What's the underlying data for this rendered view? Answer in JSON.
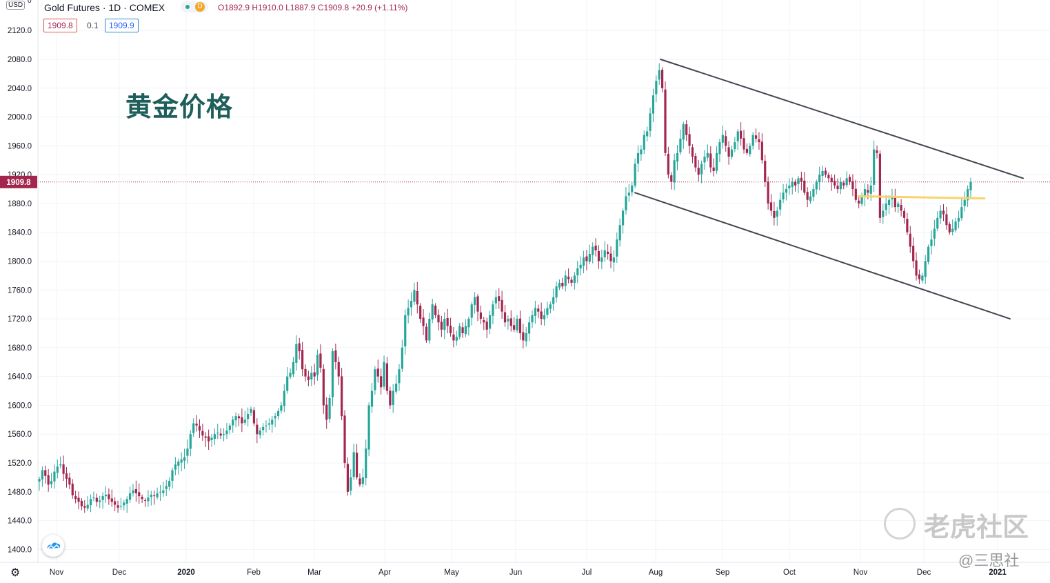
{
  "header": {
    "symbol": "Gold Futures · 1D · COMEX",
    "badge": "D",
    "ohlc": "O1892.9 H1910.0 L1887.9 C1909.8 +20.9 (+1.11%)",
    "currency": "USD",
    "currency_suffix": "0",
    "bid": "1909.8",
    "spread": "0.1",
    "ask": "1909.9"
  },
  "annotation_title": "黄金价格",
  "watermark": {
    "brand": "老虎社区",
    "author": "@三思社"
  },
  "colors": {
    "up": "#26a69a",
    "down": "#a3264f",
    "support": "#f7d36b",
    "channel": "#434651"
  },
  "chart_data": {
    "type": "candlestick",
    "title": "Gold Futures · 1D · COMEX",
    "last_price": 1909.8,
    "ylim": [
      1380,
      2150
    ],
    "y_ticks": [
      2120,
      2080,
      2040,
      2000,
      1960,
      1920,
      1880,
      1840,
      1800,
      1760,
      1720,
      1680,
      1640,
      1600,
      1560,
      1520,
      1480,
      1440,
      1400
    ],
    "x_ticks": [
      "Nov",
      "Dec",
      "2020",
      "Feb",
      "Mar",
      "Apr",
      "May",
      "Jun",
      "Jul",
      "Aug",
      "Sep",
      "Oct",
      "Nov",
      "Dec",
      "2021"
    ],
    "grid": true,
    "series": [
      {
        "name": "Gold Futures",
        "closes": [
          1498,
          1510,
          1502,
          1490,
          1495,
          1508,
          1515,
          1518,
          1505,
          1498,
          1490,
          1475,
          1470,
          1466,
          1460,
          1458,
          1462,
          1470,
          1472,
          1466,
          1468,
          1474,
          1476,
          1470,
          1466,
          1462,
          1458,
          1460,
          1465,
          1470,
          1478,
          1482,
          1478,
          1474,
          1470,
          1468,
          1472,
          1476,
          1474,
          1478,
          1480,
          1482,
          1488,
          1495,
          1510,
          1518,
          1522,
          1525,
          1528,
          1540,
          1560,
          1575,
          1572,
          1565,
          1558,
          1555,
          1550,
          1555,
          1560,
          1562,
          1558,
          1560,
          1565,
          1572,
          1580,
          1585,
          1582,
          1575,
          1580,
          1588,
          1595,
          1575,
          1560,
          1565,
          1570,
          1572,
          1575,
          1580,
          1585,
          1592,
          1600,
          1620,
          1640,
          1645,
          1660,
          1685,
          1675,
          1650,
          1640,
          1635,
          1645,
          1640,
          1670,
          1652,
          1600,
          1580,
          1610,
          1675,
          1660,
          1640,
          1585,
          1520,
          1480,
          1500,
          1535,
          1500,
          1490,
          1500,
          1540,
          1600,
          1620,
          1650,
          1640,
          1625,
          1660,
          1620,
          1600,
          1620,
          1630,
          1650,
          1680,
          1725,
          1735,
          1745,
          1760,
          1740,
          1720,
          1710,
          1690,
          1720,
          1740,
          1725,
          1715,
          1705,
          1720,
          1710,
          1700,
          1690,
          1695,
          1710,
          1700,
          1710,
          1720,
          1740,
          1750,
          1730,
          1720,
          1715,
          1705,
          1725,
          1740,
          1750,
          1745,
          1730,
          1715,
          1720,
          1710,
          1705,
          1720,
          1700,
          1690,
          1700,
          1715,
          1725,
          1735,
          1730,
          1720,
          1725,
          1735,
          1740,
          1750,
          1765,
          1770,
          1765,
          1780,
          1775,
          1770,
          1780,
          1790,
          1795,
          1805,
          1800,
          1810,
          1820,
          1815,
          1800,
          1805,
          1815,
          1810,
          1800,
          1805,
          1830,
          1850,
          1870,
          1890,
          1895,
          1905,
          1935,
          1950,
          1955,
          1975,
          1980,
          2005,
          2030,
          2050,
          2065,
          2040,
          1950,
          1920,
          1910,
          1940,
          1950,
          1970,
          1990,
          1975,
          1960,
          1945,
          1930,
          1920,
          1935,
          1945,
          1950,
          1930,
          1925,
          1950,
          1965,
          1975,
          1960,
          1945,
          1955,
          1965,
          1980,
          1970,
          1955,
          1950,
          1960,
          1975,
          1970,
          1965,
          1940,
          1910,
          1880,
          1870,
          1860,
          1870,
          1885,
          1895,
          1900,
          1905,
          1910,
          1905,
          1915,
          1910,
          1895,
          1885,
          1890,
          1900,
          1910,
          1920,
          1925,
          1920,
          1915,
          1910,
          1905,
          1900,
          1910,
          1905,
          1915,
          1910,
          1900,
          1885,
          1880,
          1890,
          1900,
          1895,
          1905,
          1955,
          1950,
          1860,
          1870,
          1880,
          1885,
          1890,
          1875,
          1880,
          1870,
          1860,
          1840,
          1820,
          1800,
          1780,
          1775,
          1780,
          1800,
          1820,
          1830,
          1845,
          1860,
          1870,
          1865,
          1850,
          1840,
          1845,
          1855,
          1860,
          1875,
          1885,
          1900,
          1909.8
        ]
      }
    ],
    "trendlines": [
      {
        "name": "channel-upper",
        "from": [
          "Aug",
          2080
        ],
        "to": [
          "2021",
          1915
        ]
      },
      {
        "name": "channel-lower",
        "from": [
          "Jul",
          1895
        ],
        "to": [
          "2021",
          1720
        ]
      },
      {
        "name": "support",
        "from": [
          "Nov",
          1890
        ],
        "to": [
          "2021",
          1887
        ]
      }
    ]
  }
}
